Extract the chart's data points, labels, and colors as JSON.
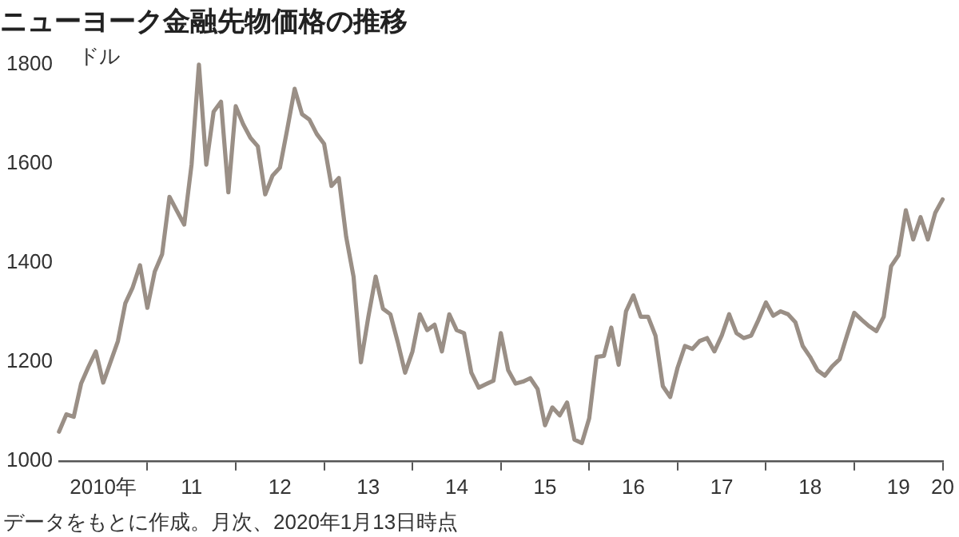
{
  "chart_data": {
    "type": "line",
    "title": "ニューヨーク金融先物価格の推移",
    "ylabel": "ドル",
    "annotations": [
      "データをもとに作成。月次、2020年1月13日時点"
    ],
    "categories": [
      null,
      null,
      null,
      null,
      null,
      null,
      "2010年",
      null,
      null,
      null,
      null,
      null,
      null,
      null,
      null,
      null,
      null,
      null,
      "11",
      null,
      null,
      null,
      null,
      null,
      null,
      null,
      null,
      null,
      null,
      null,
      "12",
      null,
      null,
      null,
      null,
      null,
      null,
      null,
      null,
      null,
      null,
      null,
      "13",
      null,
      null,
      null,
      null,
      null,
      null,
      null,
      null,
      null,
      null,
      null,
      "14",
      null,
      null,
      null,
      null,
      null,
      null,
      null,
      null,
      null,
      null,
      null,
      "15",
      null,
      null,
      null,
      null,
      null,
      null,
      null,
      null,
      null,
      null,
      null,
      "16",
      null,
      null,
      null,
      null,
      null,
      null,
      null,
      null,
      null,
      null,
      null,
      "17",
      null,
      null,
      null,
      null,
      null,
      null,
      null,
      null,
      null,
      null,
      null,
      "18",
      null,
      null,
      null,
      null,
      null,
      null,
      null,
      null,
      null,
      null,
      null,
      "19",
      null,
      null,
      null,
      null,
      null,
      "20"
    ],
    "series": [
      {
        "color": "#9a8f86",
        "values": [
          1059,
          1094,
          1089,
          1156,
          1190,
          1221,
          1158,
          1200,
          1242,
          1318,
          1350,
          1395,
          1309,
          1382,
          1417,
          1533,
          1505,
          1477,
          1598,
          1800,
          1598,
          1705,
          1725,
          1542,
          1716,
          1680,
          1652,
          1635,
          1538,
          1576,
          1592,
          1670,
          1751,
          1700,
          1689,
          1660,
          1640,
          1555,
          1571,
          1452,
          1372,
          1199,
          1290,
          1372,
          1307,
          1296,
          1240,
          1178,
          1221,
          1296,
          1264,
          1275,
          1221,
          1296,
          1264,
          1258,
          1178,
          1148,
          1155,
          1162,
          1258,
          1183,
          1156,
          1160,
          1167,
          1145,
          1072,
          1108,
          1092,
          1118,
          1043,
          1036,
          1086,
          1210,
          1212,
          1269,
          1194,
          1302,
          1334,
          1291,
          1291,
          1253,
          1151,
          1129,
          1188,
          1232,
          1226,
          1242,
          1248,
          1221,
          1253,
          1296,
          1258,
          1248,
          1253,
          1285,
          1320,
          1293,
          1302,
          1296,
          1280,
          1232,
          1210,
          1183,
          1172,
          1191,
          1205,
          1253,
          1299,
          1285,
          1272,
          1262,
          1291,
          1393,
          1415,
          1506,
          1447,
          1492,
          1447,
          1501,
          1528
        ]
      }
    ],
    "ylim": [
      1000,
      1800
    ],
    "yticks": [
      1000,
      1200,
      1400,
      1600,
      1800
    ],
    "grid": false,
    "legend": false,
    "marker": "none",
    "line_style": "solid"
  }
}
